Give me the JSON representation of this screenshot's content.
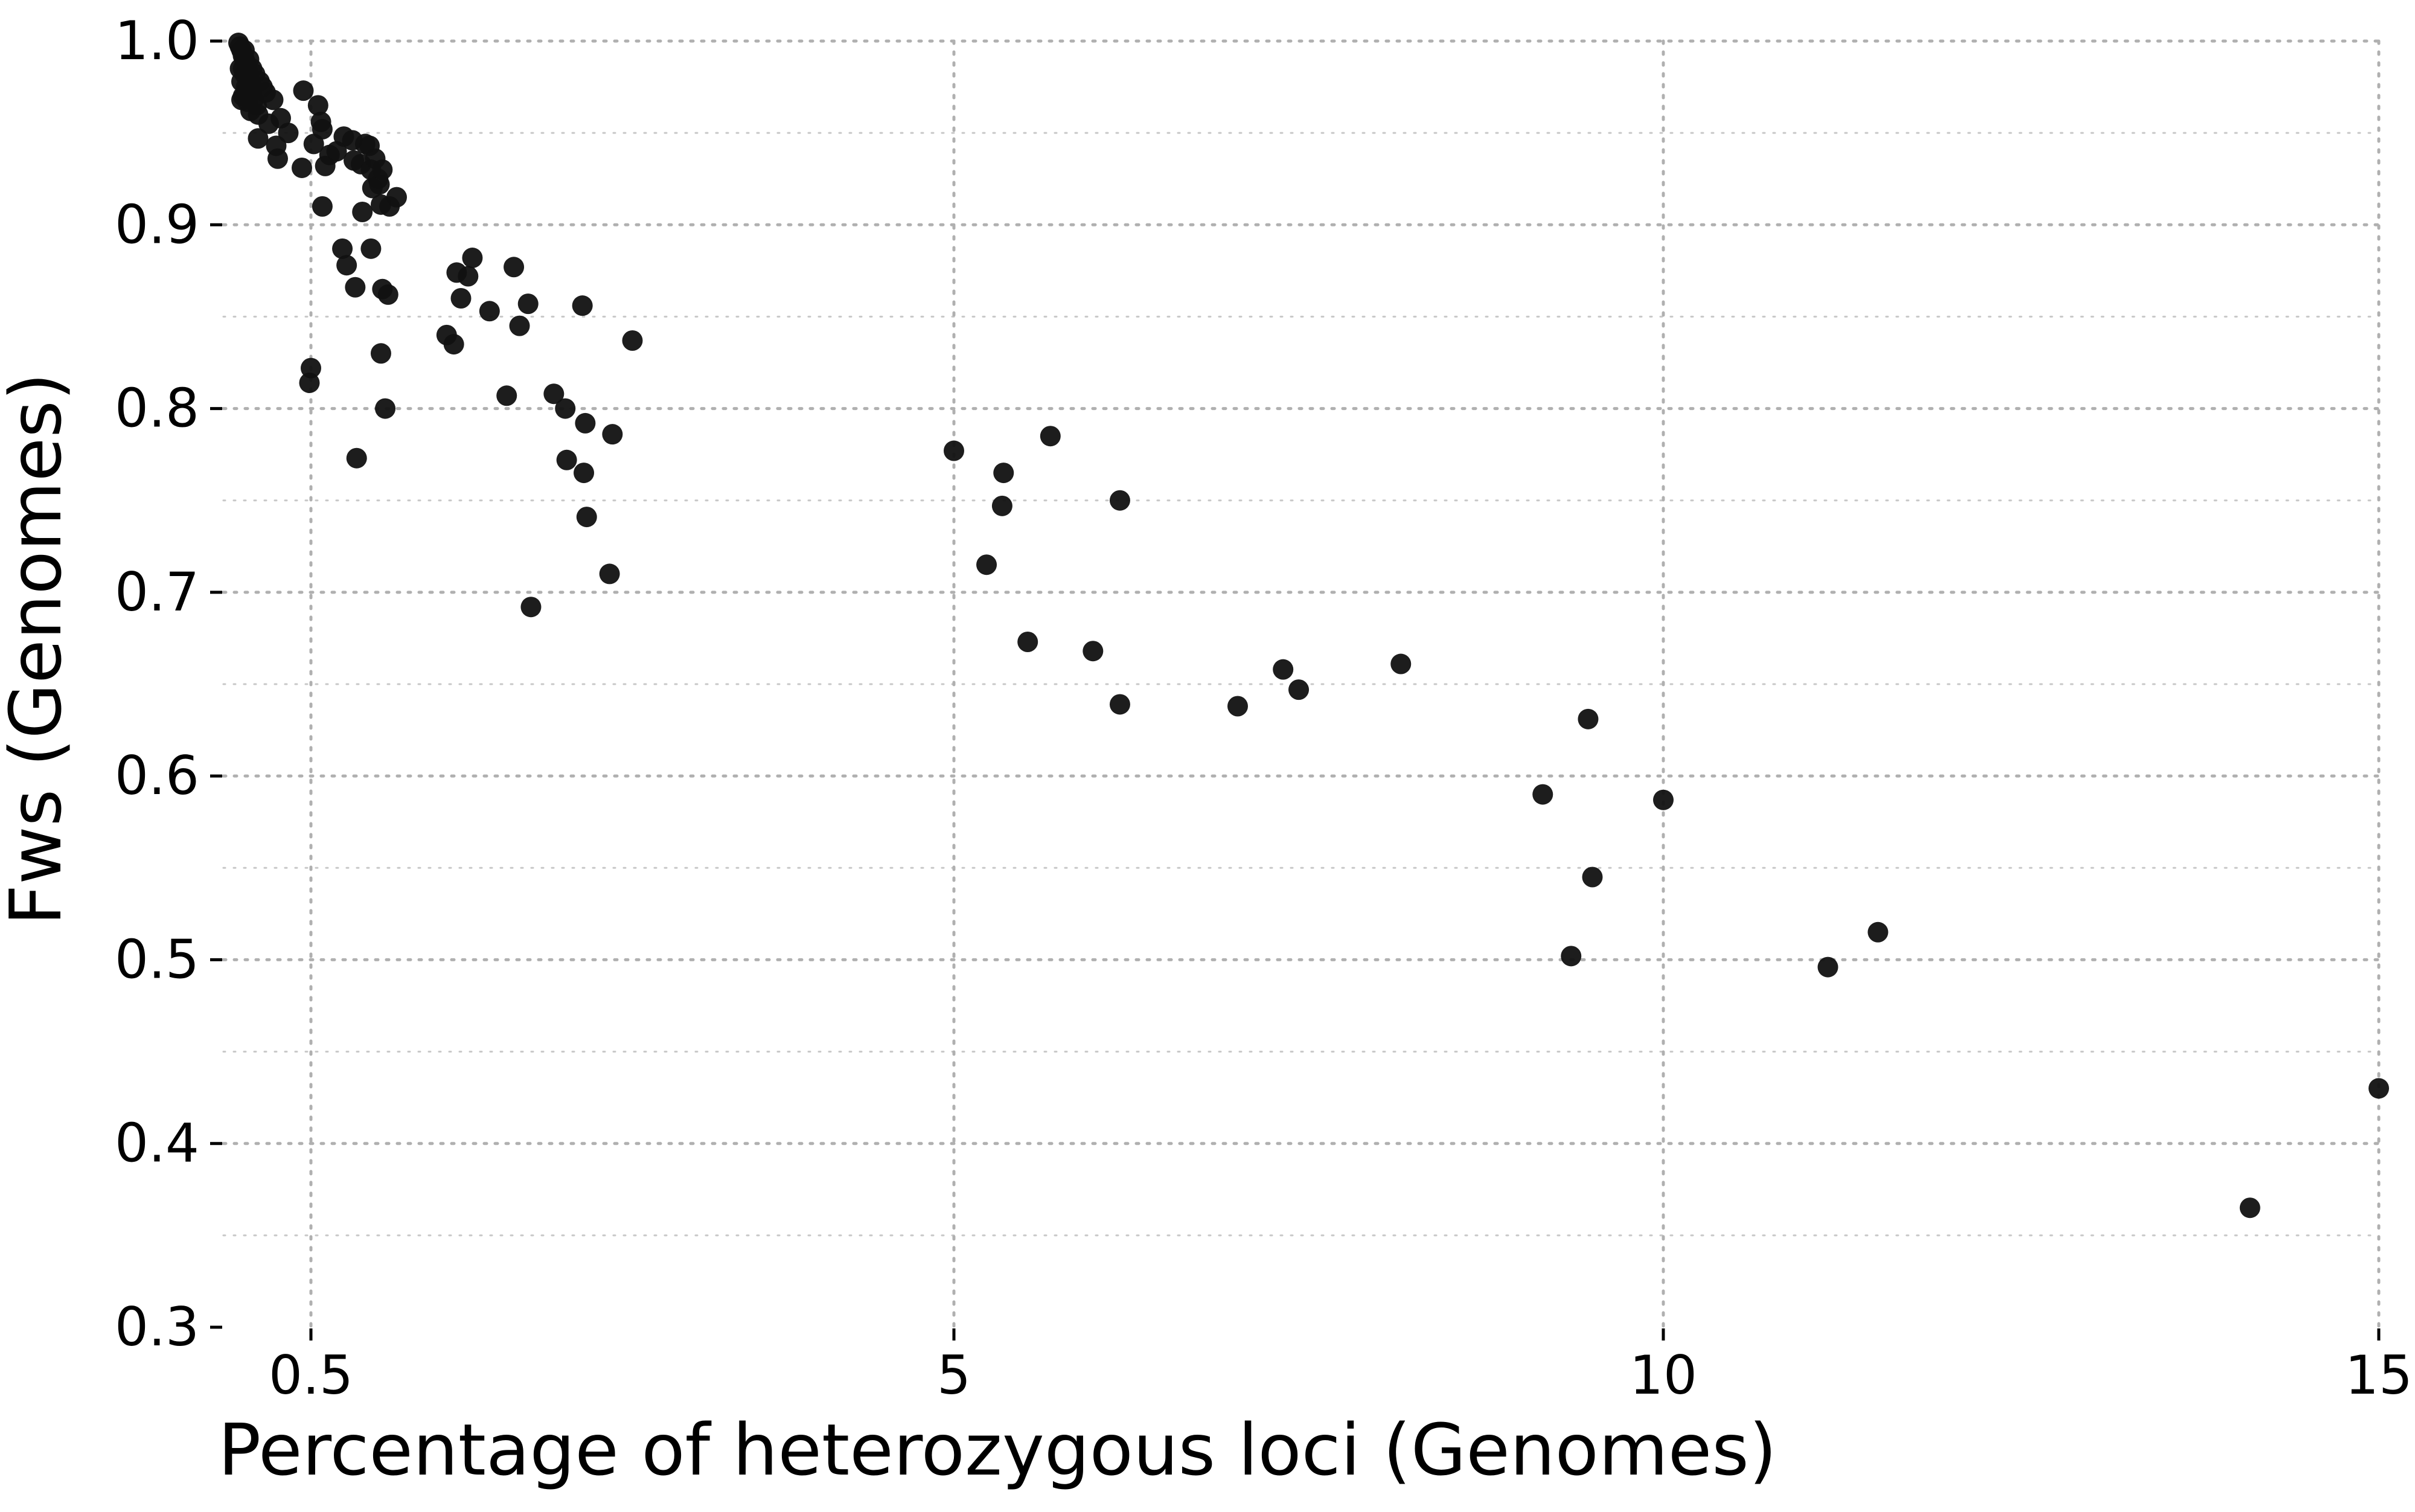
{
  "chart_data": {
    "type": "scatter",
    "xlabel": "Percentage of heterozygous loci (Genomes)",
    "ylabel": "Fws (Genomes)",
    "x_scale": "piecewise-linear",
    "x_ticks": [
      0.5,
      5,
      10,
      15
    ],
    "x_tick_labels": [
      "0.5",
      "5",
      "10",
      "15"
    ],
    "y_ticks": [
      0.3,
      0.4,
      0.5,
      0.6,
      0.7,
      0.8,
      0.9,
      1.0
    ],
    "y_tick_labels": [
      "0.3",
      "0.4",
      "0.5",
      "0.6",
      "0.7",
      "0.8",
      "0.9",
      "1.0"
    ],
    "ylim": [
      0.3,
      1.0
    ],
    "grid": true,
    "legend": "none",
    "marker_color": "#111111",
    "grid_color": "#b0b0b0",
    "points": [
      {
        "x": 0.02,
        "y": 0.999
      },
      {
        "x": 0.03,
        "y": 0.997
      },
      {
        "x": 0.04,
        "y": 0.995
      },
      {
        "x": 0.05,
        "y": 0.992
      },
      {
        "x": 0.06,
        "y": 0.99
      },
      {
        "x": 0.07,
        "y": 0.988
      },
      {
        "x": 0.05,
        "y": 0.985
      },
      {
        "x": 0.08,
        "y": 0.984
      },
      {
        "x": 0.06,
        "y": 0.982
      },
      {
        "x": 0.09,
        "y": 0.98
      },
      {
        "x": 0.04,
        "y": 0.978
      },
      {
        "x": 0.1,
        "y": 0.976
      },
      {
        "x": 0.07,
        "y": 0.975
      },
      {
        "x": 0.11,
        "y": 0.973
      },
      {
        "x": 0.05,
        "y": 0.97
      },
      {
        "x": 0.12,
        "y": 0.968
      },
      {
        "x": 0.08,
        "y": 0.967
      },
      {
        "x": 0.14,
        "y": 0.965
      },
      {
        "x": 0.1,
        "y": 0.962
      },
      {
        "x": 0.15,
        "y": 0.96
      },
      {
        "x": 0.03,
        "y": 0.985
      },
      {
        "x": 0.06,
        "y": 0.995
      },
      {
        "x": 0.09,
        "y": 0.99
      },
      {
        "x": 0.11,
        "y": 0.985
      },
      {
        "x": 0.13,
        "y": 0.982
      },
      {
        "x": 0.16,
        "y": 0.978
      },
      {
        "x": 0.18,
        "y": 0.975
      },
      {
        "x": 0.04,
        "y": 0.968
      },
      {
        "x": 0.07,
        "y": 0.972
      },
      {
        "x": 0.2,
        "y": 0.972
      },
      {
        "x": 0.25,
        "y": 0.968
      },
      {
        "x": 0.3,
        "y": 0.958
      },
      {
        "x": 0.22,
        "y": 0.955
      },
      {
        "x": 0.35,
        "y": 0.95
      },
      {
        "x": 0.15,
        "y": 0.947
      },
      {
        "x": 0.27,
        "y": 0.943
      },
      {
        "x": 0.28,
        "y": 0.936
      },
      {
        "x": 0.45,
        "y": 0.973
      },
      {
        "x": 0.55,
        "y": 0.965
      },
      {
        "x": 0.57,
        "y": 0.956
      },
      {
        "x": 0.58,
        "y": 0.952
      },
      {
        "x": 0.52,
        "y": 0.944
      },
      {
        "x": 0.44,
        "y": 0.931
      },
      {
        "x": 0.6,
        "y": 0.932
      },
      {
        "x": 0.63,
        "y": 0.938
      },
      {
        "x": 0.68,
        "y": 0.94
      },
      {
        "x": 0.58,
        "y": 0.91
      },
      {
        "x": 0.73,
        "y": 0.948
      },
      {
        "x": 0.79,
        "y": 0.946
      },
      {
        "x": 0.8,
        "y": 0.935
      },
      {
        "x": 0.85,
        "y": 0.933
      },
      {
        "x": 0.88,
        "y": 0.944
      },
      {
        "x": 0.91,
        "y": 0.943
      },
      {
        "x": 0.92,
        "y": 0.93
      },
      {
        "x": 0.93,
        "y": 0.92
      },
      {
        "x": 0.95,
        "y": 0.936
      },
      {
        "x": 0.97,
        "y": 0.925
      },
      {
        "x": 0.98,
        "y": 0.922
      },
      {
        "x": 1.0,
        "y": 0.93
      },
      {
        "x": 0.86,
        "y": 0.907
      },
      {
        "x": 0.99,
        "y": 0.911
      },
      {
        "x": 1.05,
        "y": 0.91
      },
      {
        "x": 1.1,
        "y": 0.915
      },
      {
        "x": 0.72,
        "y": 0.887
      },
      {
        "x": 0.75,
        "y": 0.878
      },
      {
        "x": 0.92,
        "y": 0.887
      },
      {
        "x": 0.81,
        "y": 0.866
      },
      {
        "x": 1.0,
        "y": 0.865
      },
      {
        "x": 1.04,
        "y": 0.862
      },
      {
        "x": 0.5,
        "y": 0.822
      },
      {
        "x": 0.49,
        "y": 0.814
      },
      {
        "x": 0.82,
        "y": 0.773
      },
      {
        "x": 0.99,
        "y": 0.83
      },
      {
        "x": 1.02,
        "y": 0.8
      },
      {
        "x": 1.45,
        "y": 0.84
      },
      {
        "x": 1.5,
        "y": 0.835
      },
      {
        "x": 1.52,
        "y": 0.874
      },
      {
        "x": 1.55,
        "y": 0.86
      },
      {
        "x": 1.6,
        "y": 0.872
      },
      {
        "x": 1.63,
        "y": 0.882
      },
      {
        "x": 1.75,
        "y": 0.853
      },
      {
        "x": 1.87,
        "y": 0.807
      },
      {
        "x": 1.92,
        "y": 0.877
      },
      {
        "x": 1.96,
        "y": 0.845
      },
      {
        "x": 2.02,
        "y": 0.857
      },
      {
        "x": 2.04,
        "y": 0.692
      },
      {
        "x": 2.2,
        "y": 0.808
      },
      {
        "x": 2.28,
        "y": 0.8
      },
      {
        "x": 2.29,
        "y": 0.772
      },
      {
        "x": 2.4,
        "y": 0.856
      },
      {
        "x": 2.42,
        "y": 0.792
      },
      {
        "x": 2.41,
        "y": 0.765
      },
      {
        "x": 2.43,
        "y": 0.741
      },
      {
        "x": 2.59,
        "y": 0.71
      },
      {
        "x": 2.61,
        "y": 0.786
      },
      {
        "x": 2.75,
        "y": 0.837
      },
      {
        "x": 5.0,
        "y": 0.777
      },
      {
        "x": 5.23,
        "y": 0.715
      },
      {
        "x": 5.35,
        "y": 0.765
      },
      {
        "x": 5.34,
        "y": 0.747
      },
      {
        "x": 5.52,
        "y": 0.673
      },
      {
        "x": 5.68,
        "y": 0.785
      },
      {
        "x": 5.98,
        "y": 0.668
      },
      {
        "x": 6.17,
        "y": 0.75
      },
      {
        "x": 6.17,
        "y": 0.639
      },
      {
        "x": 7.0,
        "y": 0.638
      },
      {
        "x": 7.32,
        "y": 0.658
      },
      {
        "x": 7.43,
        "y": 0.647
      },
      {
        "x": 8.15,
        "y": 0.661
      },
      {
        "x": 9.15,
        "y": 0.59
      },
      {
        "x": 9.35,
        "y": 0.502
      },
      {
        "x": 9.47,
        "y": 0.631
      },
      {
        "x": 9.5,
        "y": 0.545
      },
      {
        "x": 10.0,
        "y": 0.587
      },
      {
        "x": 11.15,
        "y": 0.496
      },
      {
        "x": 11.5,
        "y": 0.515
      },
      {
        "x": 14.1,
        "y": 0.365
      },
      {
        "x": 15.0,
        "y": 0.43
      }
    ]
  }
}
